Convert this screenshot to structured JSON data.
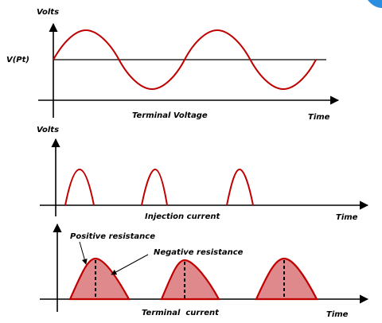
{
  "panels": [
    {
      "y_label": "Volts",
      "reference_label": "V(Pt)",
      "caption": "Terminal Voltage",
      "x_label": "Time"
    },
    {
      "y_label": "Volts",
      "caption": "Injection current",
      "x_label": "Time"
    },
    {
      "annotations": [
        "Positive resistance",
        "Negative resistance"
      ],
      "caption": "Terminal  current",
      "x_label": "Time"
    }
  ]
}
